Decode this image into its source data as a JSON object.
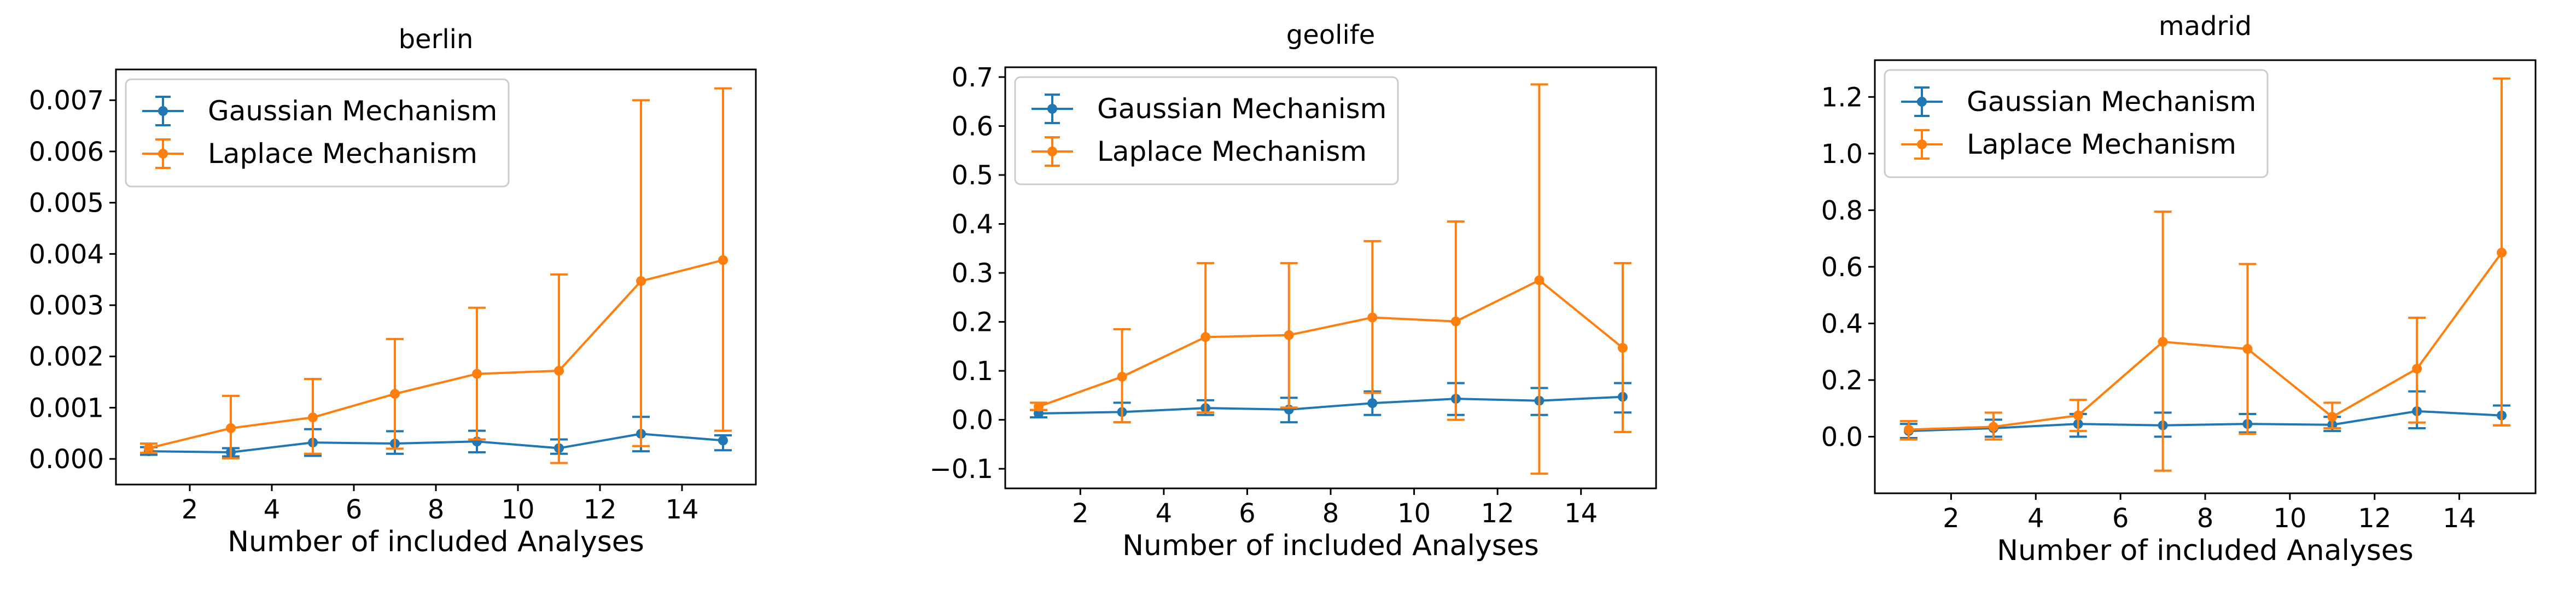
{
  "colors": {
    "gaussian": "#1f77b4",
    "laplace": "#ff7f0e"
  },
  "legend": {
    "placement": "top-left",
    "series": [
      "Gaussian Mechanism",
      "Laplace Mechanism"
    ]
  },
  "chart_data": [
    {
      "type": "line",
      "title": "berlin",
      "xlabel": "Number of included Analyses",
      "ylabel": "",
      "xlim": [
        0.2,
        15.8
      ],
      "ylim": [
        -0.0005,
        0.0076
      ],
      "xticks": [
        2,
        4,
        6,
        8,
        10,
        12,
        14
      ],
      "xtick_labels": [
        "2",
        "4",
        "6",
        "8",
        "10",
        "12",
        "14"
      ],
      "yticks": [
        0,
        0.001,
        0.002,
        0.003,
        0.004,
        0.005,
        0.006,
        0.007
      ],
      "ytick_labels": [
        "0.000",
        "0.001",
        "0.002",
        "0.003",
        "0.004",
        "0.005",
        "0.006",
        "0.007"
      ],
      "grid": false,
      "x": [
        1,
        3,
        5,
        7,
        9,
        11,
        13,
        15
      ],
      "series": [
        {
          "name": "Gaussian Mechanism",
          "values": [
            0.00015,
            0.00013,
            0.00032,
            0.0003,
            0.00034,
            0.00021,
            0.00049,
            0.00036
          ],
          "err_low": [
            8e-05,
            5e-05,
            6e-05,
            0.0001,
            0.00013,
            0.0001,
            0.00015,
            0.00017
          ],
          "err_high": [
            0.00023,
            0.00021,
            0.00058,
            0.00054,
            0.00055,
            0.00038,
            0.00082,
            0.00046
          ]
        },
        {
          "name": "Laplace Mechanism",
          "values": [
            0.00021,
            0.0006,
            0.00081,
            0.00127,
            0.00166,
            0.00172,
            0.00347,
            0.00388
          ],
          "err_low": [
            0.00012,
            1e-05,
            0.0001,
            0.0002,
            0.00038,
            -8e-05,
            0.00025,
            0.00055
          ],
          "err_high": [
            0.0003,
            0.00123,
            0.00156,
            0.00234,
            0.00295,
            0.0036,
            0.007,
            0.00723
          ]
        }
      ]
    },
    {
      "type": "line",
      "title": "geolife",
      "xlabel": "Number of included Analyses",
      "ylabel": "",
      "xlim": [
        0.2,
        15.8
      ],
      "ylim": [
        -0.14,
        0.72
      ],
      "xticks": [
        2,
        4,
        6,
        8,
        10,
        12,
        14
      ],
      "xtick_labels": [
        "2",
        "4",
        "6",
        "8",
        "10",
        "12",
        "14"
      ],
      "yticks": [
        -0.1,
        0,
        0.1,
        0.2,
        0.3,
        0.4,
        0.5,
        0.6,
        0.7
      ],
      "ytick_labels": [
        "−0.1",
        "0.0",
        "0.1",
        "0.2",
        "0.3",
        "0.4",
        "0.5",
        "0.6",
        "0.7"
      ],
      "grid": false,
      "x": [
        1,
        3,
        5,
        7,
        9,
        11,
        13,
        15
      ],
      "series": [
        {
          "name": "Gaussian Mechanism",
          "values": [
            0.013,
            0.016,
            0.024,
            0.021,
            0.034,
            0.043,
            0.039,
            0.047
          ],
          "err_low": [
            0.005,
            -0.005,
            0.01,
            -0.005,
            0.01,
            0.01,
            0.01,
            0.015
          ],
          "err_high": [
            0.02,
            0.035,
            0.04,
            0.045,
            0.058,
            0.075,
            0.065,
            0.075
          ]
        },
        {
          "name": "Laplace Mechanism",
          "values": [
            0.027,
            0.088,
            0.169,
            0.173,
            0.209,
            0.201,
            0.285,
            0.147
          ],
          "err_low": [
            0.02,
            -0.005,
            0.015,
            0.025,
            0.055,
            0.0,
            -0.11,
            -0.025
          ],
          "err_high": [
            0.035,
            0.185,
            0.32,
            0.32,
            0.365,
            0.405,
            0.685,
            0.32
          ]
        }
      ]
    },
    {
      "type": "line",
      "title": "madrid",
      "xlabel": "Number of included Analyses",
      "ylabel": "",
      "xlim": [
        0.2,
        15.8
      ],
      "ylim": [
        -0.2,
        1.33
      ],
      "xticks": [
        2,
        4,
        6,
        8,
        10,
        12,
        14
      ],
      "xtick_labels": [
        "2",
        "4",
        "6",
        "8",
        "10",
        "12",
        "14"
      ],
      "yticks": [
        0,
        0.2,
        0.4,
        0.6,
        0.8,
        1.0,
        1.2
      ],
      "ytick_labels": [
        "0.0",
        "0.2",
        "0.4",
        "0.6",
        "0.8",
        "1.0",
        "1.2"
      ],
      "grid": false,
      "x": [
        1,
        3,
        5,
        7,
        9,
        11,
        13,
        15
      ],
      "series": [
        {
          "name": "Gaussian Mechanism",
          "values": [
            0.02,
            0.03,
            0.045,
            0.04,
            0.045,
            0.042,
            0.09,
            0.075
          ],
          "err_low": [
            -0.005,
            0.0,
            0.0,
            0.0,
            0.015,
            0.02,
            0.03,
            0.04
          ],
          "err_high": [
            0.045,
            0.06,
            0.08,
            0.085,
            0.08,
            0.07,
            0.16,
            0.11
          ]
        },
        {
          "name": "Laplace Mechanism",
          "values": [
            0.025,
            0.035,
            0.075,
            0.335,
            0.31,
            0.07,
            0.24,
            0.65
          ],
          "err_low": [
            -0.01,
            -0.01,
            0.02,
            -0.12,
            0.01,
            0.03,
            0.05,
            0.04
          ],
          "err_high": [
            0.055,
            0.085,
            0.13,
            0.795,
            0.61,
            0.12,
            0.42,
            1.265
          ]
        }
      ]
    }
  ]
}
